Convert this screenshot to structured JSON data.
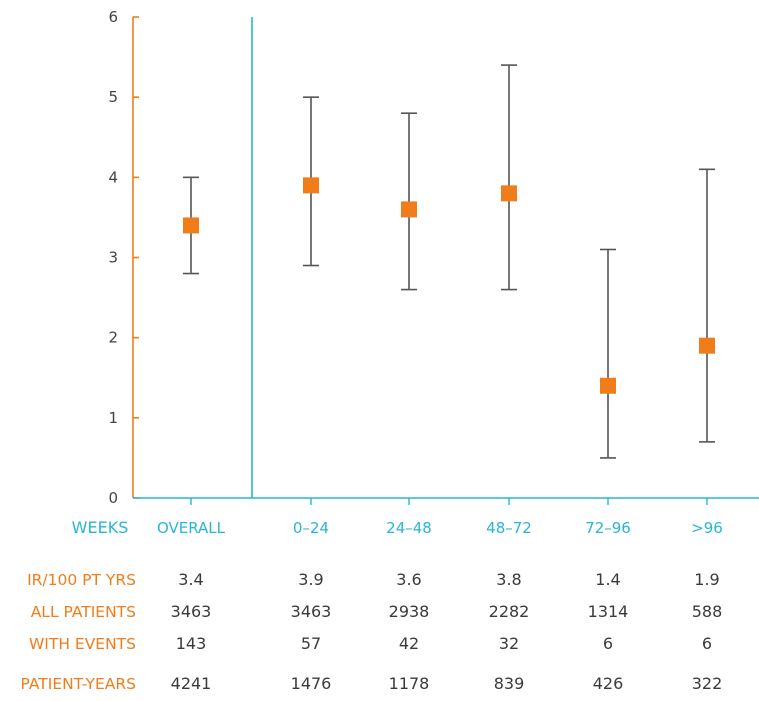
{
  "chart_data": {
    "type": "scatter",
    "subtype": "point-with-error-bars",
    "title": "",
    "x_axis_label": "WEEKS",
    "categories": [
      "OVERALL",
      "0–24",
      "24–48",
      "48–72",
      "72–96",
      ">96"
    ],
    "ylim": [
      0,
      6
    ],
    "yticks": [
      "0",
      "1",
      "2",
      "3",
      "4",
      "5",
      "6"
    ],
    "series": [
      {
        "estimate": [
          3.4,
          3.9,
          3.6,
          3.8,
          1.4,
          1.9
        ],
        "lower": [
          2.8,
          2.9,
          2.6,
          2.6,
          0.5,
          0.7
        ],
        "upper": [
          4.0,
          5.0,
          4.8,
          5.4,
          3.1,
          4.1
        ]
      }
    ],
    "grid": false,
    "divider_after_category": "OVERALL",
    "table": {
      "rows": [
        {
          "label": "IR/100 PT YRS",
          "values": [
            "3.4",
            "3.9",
            "3.6",
            "3.8",
            "1.4",
            "1.9"
          ]
        },
        {
          "label": "ALL PATIENTS",
          "values": [
            "3463",
            "3463",
            "2938",
            "2282",
            "1314",
            "588"
          ]
        },
        {
          "label": "WITH EVENTS",
          "values": [
            "143",
            "57",
            "42",
            "32",
            "6",
            "6"
          ]
        },
        {
          "label": "PATIENT-YEARS",
          "values": [
            "4241",
            "1476",
            "1178",
            "839",
            "426",
            "322"
          ]
        }
      ]
    },
    "colors": {
      "marker": "#f07d1a",
      "error_bar": "#555555",
      "axis_y": "#f07d1a",
      "axis_x": "#29b6d4",
      "category_text": "#29b6d4",
      "row_label": "#f07d1a",
      "cell_text": "#3a3a3a"
    }
  }
}
